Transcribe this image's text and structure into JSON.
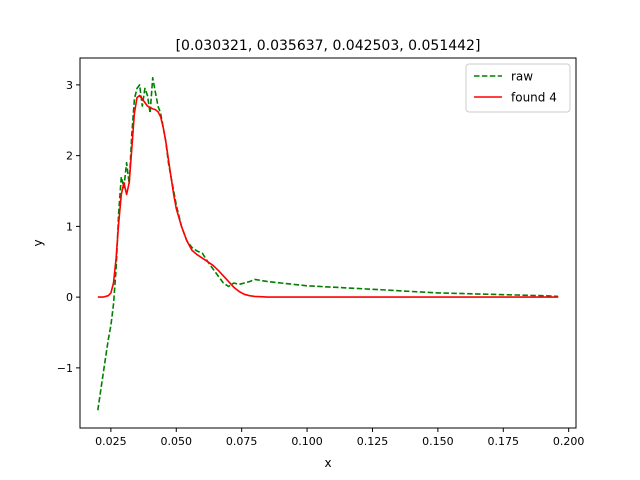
{
  "chart_data": {
    "type": "line",
    "title": "[0.030321, 0.035637, 0.042503, 0.051442]",
    "xlabel": "x",
    "ylabel": "y",
    "xlim": [
      0.0132,
      0.2028
    ],
    "ylim": [
      -1.85,
      3.38
    ],
    "x_ticks": [
      0.025,
      0.05,
      0.075,
      0.1,
      0.125,
      0.15,
      0.175,
      0.2
    ],
    "x_tick_labels": [
      "0.025",
      "0.050",
      "0.075",
      "0.100",
      "0.125",
      "0.150",
      "0.175",
      "0.200"
    ],
    "y_ticks": [
      -1,
      0,
      1,
      2,
      3
    ],
    "y_tick_labels": [
      "−1",
      "0",
      "1",
      "2",
      "3"
    ],
    "grid": false,
    "legend_position": "top-right",
    "series": [
      {
        "name": "raw",
        "color": "#008000",
        "style": "dashed",
        "x": [
          0.02,
          0.021,
          0.022,
          0.023,
          0.024,
          0.025,
          0.026,
          0.027,
          0.028,
          0.029,
          0.03,
          0.031,
          0.032,
          0.033,
          0.034,
          0.035,
          0.036,
          0.037,
          0.038,
          0.039,
          0.04,
          0.041,
          0.042,
          0.043,
          0.044,
          0.045,
          0.046,
          0.047,
          0.048,
          0.049,
          0.05,
          0.052,
          0.054,
          0.056,
          0.058,
          0.06,
          0.062,
          0.064,
          0.066,
          0.068,
          0.07,
          0.072,
          0.074,
          0.076,
          0.078,
          0.08,
          0.085,
          0.09,
          0.095,
          0.1,
          0.11,
          0.12,
          0.13,
          0.14,
          0.15,
          0.16,
          0.17,
          0.18,
          0.19,
          0.196
        ],
        "values": [
          -1.6,
          -1.35,
          -1.1,
          -0.85,
          -0.6,
          -0.4,
          -0.1,
          0.4,
          1.2,
          1.7,
          1.55,
          1.9,
          1.6,
          2.3,
          2.8,
          2.95,
          3.0,
          2.7,
          2.95,
          2.85,
          2.6,
          3.1,
          2.9,
          2.7,
          2.6,
          2.4,
          2.2,
          1.9,
          1.7,
          1.5,
          1.3,
          1.0,
          0.8,
          0.7,
          0.65,
          0.62,
          0.5,
          0.4,
          0.3,
          0.2,
          0.15,
          0.2,
          0.18,
          0.2,
          0.22,
          0.25,
          0.22,
          0.2,
          0.18,
          0.16,
          0.14,
          0.12,
          0.1,
          0.08,
          0.06,
          0.05,
          0.04,
          0.03,
          0.02,
          0.01
        ]
      },
      {
        "name": "found 4",
        "color": "#ff0000",
        "style": "solid",
        "x": [
          0.02,
          0.022,
          0.024,
          0.025,
          0.026,
          0.027,
          0.028,
          0.029,
          0.03,
          0.031,
          0.032,
          0.033,
          0.034,
          0.035,
          0.036,
          0.037,
          0.038,
          0.039,
          0.04,
          0.041,
          0.042,
          0.043,
          0.044,
          0.045,
          0.046,
          0.047,
          0.048,
          0.049,
          0.05,
          0.052,
          0.054,
          0.056,
          0.058,
          0.06,
          0.062,
          0.064,
          0.066,
          0.068,
          0.07,
          0.072,
          0.074,
          0.076,
          0.078,
          0.08,
          0.085,
          0.09,
          0.1,
          0.12,
          0.15,
          0.18,
          0.196
        ],
        "values": [
          0.0,
          0.0,
          0.02,
          0.06,
          0.2,
          0.55,
          1.05,
          1.45,
          1.62,
          1.45,
          1.62,
          2.1,
          2.6,
          2.82,
          2.85,
          2.8,
          2.75,
          2.7,
          2.68,
          2.66,
          2.65,
          2.62,
          2.55,
          2.4,
          2.2,
          1.95,
          1.7,
          1.45,
          1.25,
          1.0,
          0.8,
          0.66,
          0.6,
          0.55,
          0.5,
          0.45,
          0.38,
          0.3,
          0.22,
          0.14,
          0.08,
          0.04,
          0.02,
          0.01,
          0.0,
          0.0,
          0.0,
          0.0,
          0.0,
          0.0,
          0.0
        ]
      }
    ]
  }
}
